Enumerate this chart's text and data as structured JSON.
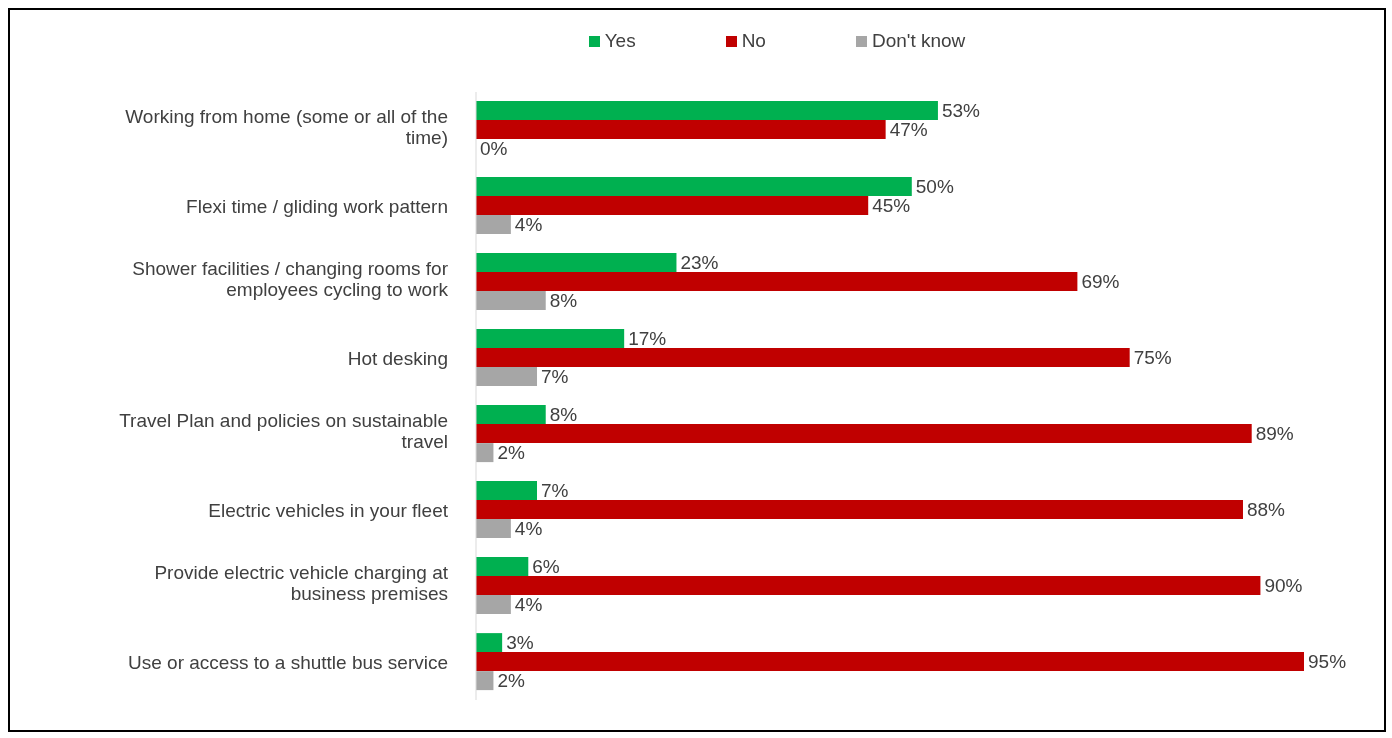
{
  "chart_data": {
    "type": "bar",
    "orientation": "horizontal",
    "categories": [
      "Working from home (some or all of the time)",
      "Flexi time / gliding work pattern",
      "Shower facilities / changing rooms for employees cycling to work",
      "Hot desking",
      "Travel Plan and policies on sustainable travel",
      "Electric vehicles in your fleet",
      "Provide electric vehicle charging at business premises",
      "Use or access to a shuttle bus service"
    ],
    "series": [
      {
        "name": "Yes",
        "color": "#00b050",
        "values": [
          53,
          50,
          23,
          17,
          8,
          7,
          6,
          3
        ],
        "value_labels": [
          "53%",
          "50%",
          "23%",
          "17%",
          "8%",
          "7%",
          "6%",
          "3%"
        ]
      },
      {
        "name": "No",
        "color": "#c00000",
        "values": [
          47,
          45,
          69,
          75,
          89,
          88,
          90,
          95
        ],
        "value_labels": [
          "47%",
          "45%",
          "69%",
          "75%",
          "89%",
          "88%",
          "90%",
          "95%"
        ]
      },
      {
        "name": "Don't know",
        "color": "#a6a6a6",
        "values": [
          0,
          4,
          8,
          7,
          2,
          4,
          4,
          2
        ],
        "value_labels": [
          "0%",
          "4%",
          "8%",
          "7%",
          "2%",
          "4%",
          "4%",
          "2%"
        ]
      }
    ],
    "legend": "top",
    "grid": false,
    "tick_labels": "y"
  }
}
